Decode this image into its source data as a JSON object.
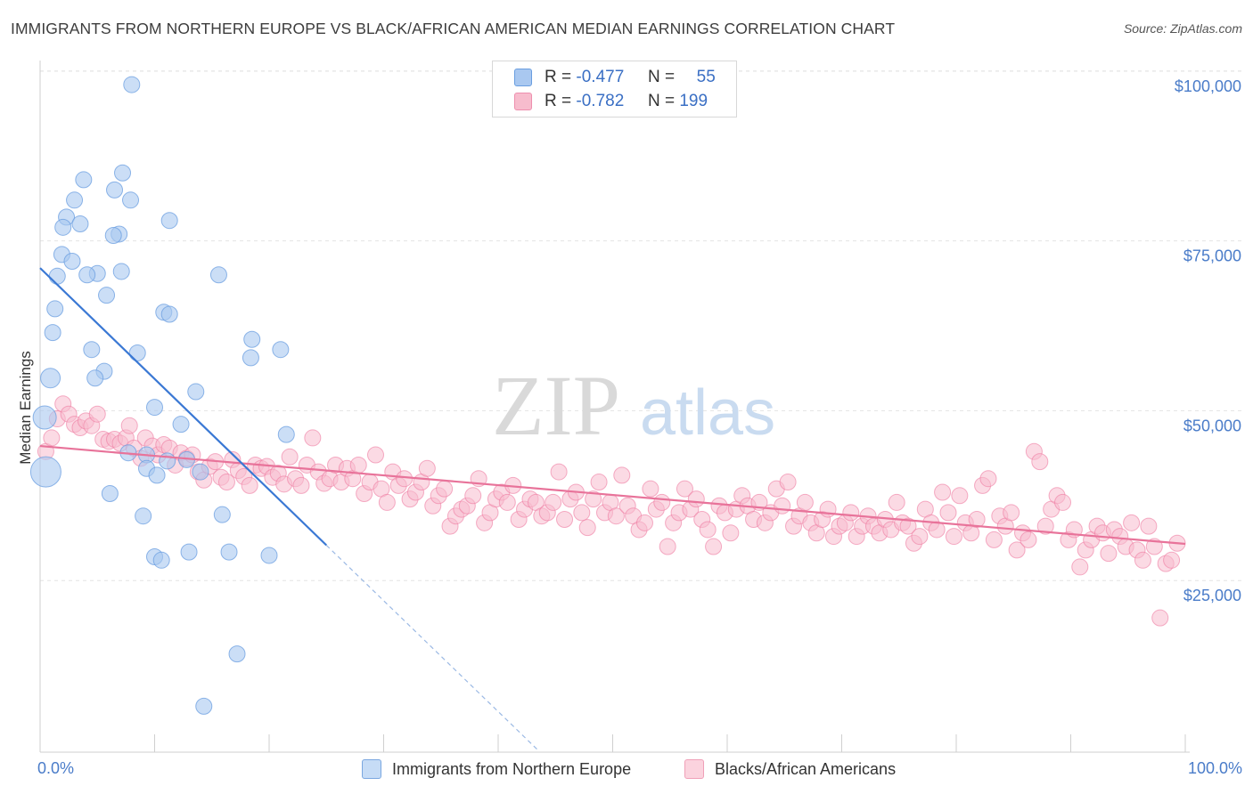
{
  "title": "IMMIGRANTS FROM NORTHERN EUROPE VS BLACK/AFRICAN AMERICAN MEDIAN EARNINGS CORRELATION CHART",
  "source": "Source: ZipAtlas.com",
  "watermark": {
    "zip": "ZIP",
    "atlas": "atlas"
  },
  "legend_top": {
    "rows": [
      {
        "r_label": "R =",
        "r_value": "-0.477",
        "n_label": "N =",
        "n_value": "55",
        "color": "#a9c8f0",
        "border": "#6a9ee0"
      },
      {
        "r_label": "R =",
        "r_value": "-0.782",
        "n_label": "N =",
        "n_value": "199",
        "color": "#f7bccd",
        "border": "#ee8fae"
      }
    ]
  },
  "legend_bottom": {
    "items": [
      {
        "label": "Immigrants from Northern Europe",
        "color": "#c6dcf6",
        "border": "#7aa7e0"
      },
      {
        "label": "Blacks/African Americans",
        "color": "#fbd3de",
        "border": "#f0a0b8"
      }
    ]
  },
  "chart_data": {
    "type": "scatter",
    "title": "IMMIGRANTS FROM NORTHERN EUROPE VS BLACK/AFRICAN AMERICAN MEDIAN EARNINGS CORRELATION CHART",
    "xlabel": "",
    "ylabel": "Median Earnings",
    "xlim": [
      0,
      100
    ],
    "ylim": [
      0,
      105000
    ],
    "x_ticks": [
      "0.0%",
      "100.0%"
    ],
    "y_ticks": [
      {
        "value": 25000,
        "label": "$25,000"
      },
      {
        "value": 50000,
        "label": "$50,000"
      },
      {
        "value": 75000,
        "label": "$75,000"
      },
      {
        "value": 100000,
        "label": "$100,000"
      }
    ],
    "grid": true,
    "legend_position": "top-center",
    "series": [
      {
        "name": "Immigrants from Northern Europe",
        "color": "#6a9ee0",
        "fill": "#a9c8f0",
        "trend": {
          "x": [
            0,
            25
          ],
          "y": [
            71000,
            30200
          ],
          "dashed_extension_to": [
            43.5,
            0
          ]
        },
        "points": [
          [
            8,
            98000
          ],
          [
            7.2,
            85000
          ],
          [
            3.8,
            84000
          ],
          [
            6.5,
            82500
          ],
          [
            3,
            81000
          ],
          [
            7.9,
            81000
          ],
          [
            2.3,
            78500
          ],
          [
            11.3,
            78000
          ],
          [
            3.5,
            77500
          ],
          [
            2,
            77000
          ],
          [
            6.9,
            76000
          ],
          [
            6.4,
            75800
          ],
          [
            1.9,
            73000
          ],
          [
            2.8,
            72000
          ],
          [
            7.1,
            70500
          ],
          [
            5,
            70200
          ],
          [
            15.6,
            70000
          ],
          [
            4.1,
            70000
          ],
          [
            1.5,
            69800
          ],
          [
            5.8,
            67000
          ],
          [
            1.3,
            65000
          ],
          [
            10.8,
            64500
          ],
          [
            11.3,
            64200
          ],
          [
            1.1,
            61500
          ],
          [
            18.5,
            60500
          ],
          [
            4.5,
            59000
          ],
          [
            21,
            59000
          ],
          [
            8.5,
            58500
          ],
          [
            18.4,
            57800
          ],
          [
            5.6,
            55800
          ],
          [
            0.9,
            54800
          ],
          [
            4.8,
            54800
          ],
          [
            13.6,
            52800
          ],
          [
            10,
            50500
          ],
          [
            0.4,
            49000
          ],
          [
            12.3,
            48000
          ],
          [
            21.5,
            46500
          ],
          [
            7.7,
            43800
          ],
          [
            9.3,
            43500
          ],
          [
            12.8,
            42800
          ],
          [
            11.1,
            42600
          ],
          [
            14,
            41000
          ],
          [
            9.3,
            41500
          ],
          [
            10.2,
            40500
          ],
          [
            0.5,
            41000
          ],
          [
            6.1,
            37800
          ],
          [
            9,
            34500
          ],
          [
            15.9,
            34700
          ],
          [
            10,
            28500
          ],
          [
            10.6,
            28000
          ],
          [
            13,
            29200
          ],
          [
            16.5,
            29200
          ],
          [
            20,
            28700
          ],
          [
            17.2,
            14200
          ],
          [
            14.3,
            6500
          ]
        ]
      },
      {
        "name": "Blacks/African Americans",
        "color": "#ee7aa0",
        "fill": "#f7bccd",
        "trend": {
          "x": [
            0,
            100
          ],
          "y": [
            44800,
            30400
          ]
        },
        "points": [
          [
            0.5,
            44000
          ],
          [
            1.0,
            46000
          ],
          [
            1.5,
            48800
          ],
          [
            2.0,
            51000
          ],
          [
            2.5,
            49500
          ],
          [
            3.0,
            48000
          ],
          [
            3.5,
            47500
          ],
          [
            4.0,
            48500
          ],
          [
            4.5,
            47800
          ],
          [
            5.0,
            49500
          ],
          [
            5.5,
            45800
          ],
          [
            6.0,
            45500
          ],
          [
            6.5,
            45800
          ],
          [
            7.0,
            45200
          ],
          [
            7.5,
            46000
          ],
          [
            7.8,
            47800
          ],
          [
            8.2,
            44500
          ],
          [
            8.8,
            43000
          ],
          [
            9.2,
            46000
          ],
          [
            9.8,
            44800
          ],
          [
            10.3,
            43500
          ],
          [
            10.8,
            45000
          ],
          [
            11.3,
            44500
          ],
          [
            11.8,
            42000
          ],
          [
            12.3,
            43800
          ],
          [
            12.8,
            43000
          ],
          [
            13.3,
            43500
          ],
          [
            13.8,
            41000
          ],
          [
            14.3,
            39800
          ],
          [
            14.8,
            41800
          ],
          [
            15.3,
            42500
          ],
          [
            15.8,
            40200
          ],
          [
            16.3,
            39500
          ],
          [
            16.8,
            42800
          ],
          [
            17.3,
            41200
          ],
          [
            17.8,
            40300
          ],
          [
            18.3,
            39000
          ],
          [
            18.8,
            42000
          ],
          [
            19.3,
            41500
          ],
          [
            19.8,
            41800
          ],
          [
            20.3,
            40200
          ],
          [
            20.8,
            40800
          ],
          [
            21.3,
            39200
          ],
          [
            21.8,
            43200
          ],
          [
            22.3,
            40000
          ],
          [
            22.8,
            39000
          ],
          [
            23.3,
            42000
          ],
          [
            23.8,
            46000
          ],
          [
            24.3,
            41000
          ],
          [
            24.8,
            39300
          ],
          [
            25.3,
            40000
          ],
          [
            25.8,
            42000
          ],
          [
            26.3,
            39500
          ],
          [
            26.8,
            41500
          ],
          [
            27.3,
            40000
          ],
          [
            27.8,
            42000
          ],
          [
            28.3,
            37800
          ],
          [
            28.8,
            39500
          ],
          [
            29.3,
            43500
          ],
          [
            29.8,
            38500
          ],
          [
            30.3,
            36500
          ],
          [
            30.8,
            41000
          ],
          [
            31.3,
            39000
          ],
          [
            31.8,
            40000
          ],
          [
            32.3,
            37000
          ],
          [
            32.8,
            38000
          ],
          [
            33.3,
            39500
          ],
          [
            33.8,
            41500
          ],
          [
            34.3,
            36000
          ],
          [
            34.8,
            37500
          ],
          [
            35.3,
            38500
          ],
          [
            35.8,
            33000
          ],
          [
            36.3,
            34500
          ],
          [
            36.8,
            35500
          ],
          [
            37.3,
            36000
          ],
          [
            37.8,
            37500
          ],
          [
            38.3,
            40000
          ],
          [
            38.8,
            33500
          ],
          [
            39.3,
            35000
          ],
          [
            39.8,
            37000
          ],
          [
            40.3,
            38000
          ],
          [
            40.8,
            36500
          ],
          [
            41.3,
            39000
          ],
          [
            41.8,
            34000
          ],
          [
            42.3,
            35500
          ],
          [
            42.8,
            37000
          ],
          [
            43.3,
            36500
          ],
          [
            43.8,
            34500
          ],
          [
            44.3,
            35000
          ],
          [
            44.8,
            36500
          ],
          [
            45.3,
            41000
          ],
          [
            45.8,
            34000
          ],
          [
            46.3,
            37000
          ],
          [
            46.8,
            38000
          ],
          [
            47.3,
            35000
          ],
          [
            47.8,
            32800
          ],
          [
            48.3,
            37000
          ],
          [
            48.8,
            39500
          ],
          [
            49.3,
            35000
          ],
          [
            49.8,
            36500
          ],
          [
            50.3,
            34500
          ],
          [
            50.8,
            40500
          ],
          [
            51.3,
            36000
          ],
          [
            51.8,
            34500
          ],
          [
            52.3,
            32500
          ],
          [
            52.8,
            33500
          ],
          [
            53.3,
            38500
          ],
          [
            53.8,
            35500
          ],
          [
            54.3,
            36500
          ],
          [
            54.8,
            30000
          ],
          [
            55.3,
            33500
          ],
          [
            55.8,
            35000
          ],
          [
            56.3,
            38500
          ],
          [
            56.8,
            35500
          ],
          [
            57.3,
            37000
          ],
          [
            57.8,
            34000
          ],
          [
            58.3,
            32500
          ],
          [
            58.8,
            30000
          ],
          [
            59.3,
            36000
          ],
          [
            59.8,
            35000
          ],
          [
            60.3,
            32000
          ],
          [
            60.8,
            35500
          ],
          [
            61.3,
            37500
          ],
          [
            61.8,
            36000
          ],
          [
            62.3,
            34000
          ],
          [
            62.8,
            36500
          ],
          [
            63.3,
            33500
          ],
          [
            63.8,
            35000
          ],
          [
            64.3,
            38500
          ],
          [
            64.8,
            36000
          ],
          [
            65.3,
            39500
          ],
          [
            65.8,
            33000
          ],
          [
            66.3,
            34500
          ],
          [
            66.8,
            36500
          ],
          [
            67.3,
            33500
          ],
          [
            67.8,
            32000
          ],
          [
            68.3,
            34000
          ],
          [
            68.8,
            35500
          ],
          [
            69.3,
            31500
          ],
          [
            69.8,
            33000
          ],
          [
            70.3,
            33500
          ],
          [
            70.8,
            35000
          ],
          [
            71.3,
            31500
          ],
          [
            71.8,
            33000
          ],
          [
            72.3,
            34500
          ],
          [
            72.8,
            33000
          ],
          [
            73.3,
            32000
          ],
          [
            73.8,
            34000
          ],
          [
            74.3,
            32500
          ],
          [
            74.8,
            36500
          ],
          [
            75.3,
            33500
          ],
          [
            75.8,
            33000
          ],
          [
            76.3,
            30500
          ],
          [
            76.8,
            31500
          ],
          [
            77.3,
            35500
          ],
          [
            77.8,
            33500
          ],
          [
            78.3,
            32500
          ],
          [
            78.8,
            38000
          ],
          [
            79.3,
            35000
          ],
          [
            79.8,
            31500
          ],
          [
            80.3,
            37500
          ],
          [
            80.8,
            33500
          ],
          [
            81.3,
            32000
          ],
          [
            81.8,
            34000
          ],
          [
            82.3,
            39000
          ],
          [
            82.8,
            40000
          ],
          [
            83.3,
            31000
          ],
          [
            83.8,
            34500
          ],
          [
            84.3,
            33000
          ],
          [
            84.8,
            35000
          ],
          [
            85.3,
            29500
          ],
          [
            85.8,
            32000
          ],
          [
            86.3,
            31000
          ],
          [
            86.8,
            44000
          ],
          [
            87.3,
            42500
          ],
          [
            87.8,
            33000
          ],
          [
            88.3,
            35500
          ],
          [
            88.8,
            37500
          ],
          [
            89.3,
            36500
          ],
          [
            89.8,
            31000
          ],
          [
            90.3,
            32500
          ],
          [
            90.8,
            27000
          ],
          [
            91.3,
            29500
          ],
          [
            91.8,
            31000
          ],
          [
            92.3,
            33000
          ],
          [
            92.8,
            32000
          ],
          [
            93.3,
            29000
          ],
          [
            93.8,
            32500
          ],
          [
            94.3,
            31500
          ],
          [
            94.8,
            30000
          ],
          [
            95.3,
            33500
          ],
          [
            95.8,
            29500
          ],
          [
            96.3,
            28000
          ],
          [
            96.8,
            33000
          ],
          [
            97.3,
            30000
          ],
          [
            97.8,
            19500
          ],
          [
            98.3,
            27500
          ],
          [
            98.8,
            28000
          ],
          [
            99.3,
            30500
          ]
        ]
      }
    ]
  }
}
